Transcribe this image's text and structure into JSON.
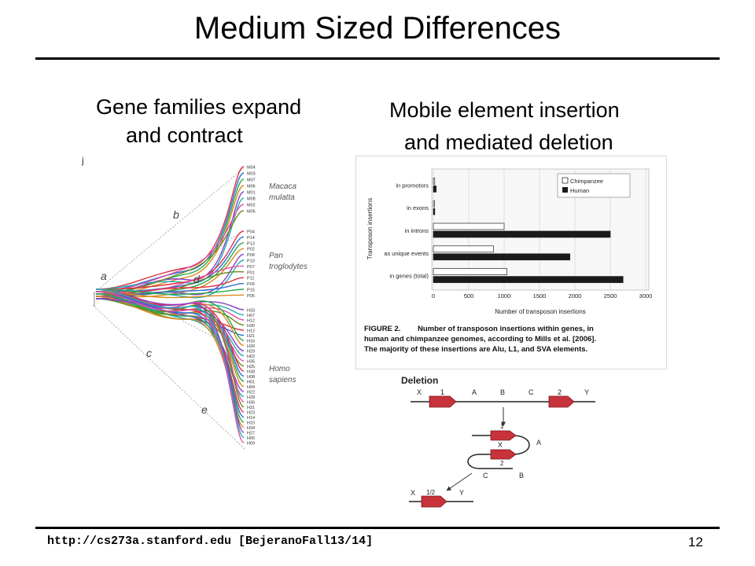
{
  "slide": {
    "title": "Medium Sized Differences",
    "left_heading_line1": "Gene families expand",
    "left_heading_line2": "and contract",
    "right_heading_line1": "Mobile element insertion",
    "right_heading_line2": "and mediated deletion",
    "footer_url": "http://cs273a.stanford.edu [BejeranoFall13/14]",
    "page_number": "12"
  },
  "tree_figure": {
    "branch_labels": [
      "a",
      "b",
      "c",
      "d",
      "e"
    ],
    "species": [
      {
        "line1": "Macaca",
        "line2": "mulatta"
      },
      {
        "line1": "Pan",
        "line2": "troglodytes"
      },
      {
        "line1": "Homo",
        "line2": "sapiens"
      }
    ],
    "macaca_genes": [
      "M04",
      "M03",
      "M07",
      "M06",
      "M01",
      "M08",
      "M02",
      "M05"
    ],
    "pan_genes": [
      "P04",
      "P14",
      "P13",
      "P02",
      "P08",
      "P10",
      "P07",
      "P01",
      "P11",
      "P06",
      "P15",
      "P05"
    ],
    "homo_genes": [
      "H33",
      "H07",
      "H12",
      "H30",
      "H12",
      "H21",
      "H16",
      "H26",
      "H29",
      "H02",
      "H35",
      "H25",
      "H38",
      "H08",
      "H01",
      "H04",
      "H22",
      "H28",
      "H36",
      "H31",
      "H23",
      "H14",
      "H10",
      "H34",
      "H27",
      "H06",
      "H09"
    ],
    "colors": [
      "#e0303f",
      "#2f6fd6",
      "#2aa84a",
      "#d88a1d",
      "#8a3fc6",
      "#23b0b8",
      "#e04fa0",
      "#6a8a1f"
    ]
  },
  "chart_data": {
    "type": "bar",
    "orientation": "horizontal",
    "categories": [
      "in promotors",
      "in exons",
      "in introns",
      "as unique events",
      "in genes (total)"
    ],
    "series": [
      {
        "name": "Chimpanzee",
        "values": [
          20,
          10,
          1000,
          850,
          1040
        ],
        "color": "#ffffff"
      },
      {
        "name": "Human",
        "values": [
          40,
          20,
          2500,
          1930,
          2680
        ],
        "color": "#1a1a1a"
      }
    ],
    "xlabel": "Number of transposon insertions",
    "ylabel": "Transposon insertions",
    "xlim": [
      0,
      3000
    ],
    "xticks": [
      "0",
      "500",
      "1000",
      "1500",
      "2000",
      "2500",
      "3000"
    ],
    "grid": true,
    "legend": "top-right",
    "caption_lead": "FIGURE 2.",
    "caption_line1": "Number of transposon insertions within genes, in",
    "caption_line2": "human and chimpanzee genomes, according to Mills et al. [2006].",
    "caption_line3": "The majority of these insertions are Alu, L1, and SVA elements."
  },
  "deletion_diagram": {
    "title": "Deletion",
    "top_labels": [
      "X",
      "1",
      "A",
      "B",
      "C",
      "2",
      "Y"
    ],
    "loop_labels": [
      "1",
      "X",
      "2",
      "A",
      "C",
      "B"
    ],
    "result_labels": [
      "X",
      "1/2",
      "Y"
    ],
    "element_color": "#c8323a"
  }
}
